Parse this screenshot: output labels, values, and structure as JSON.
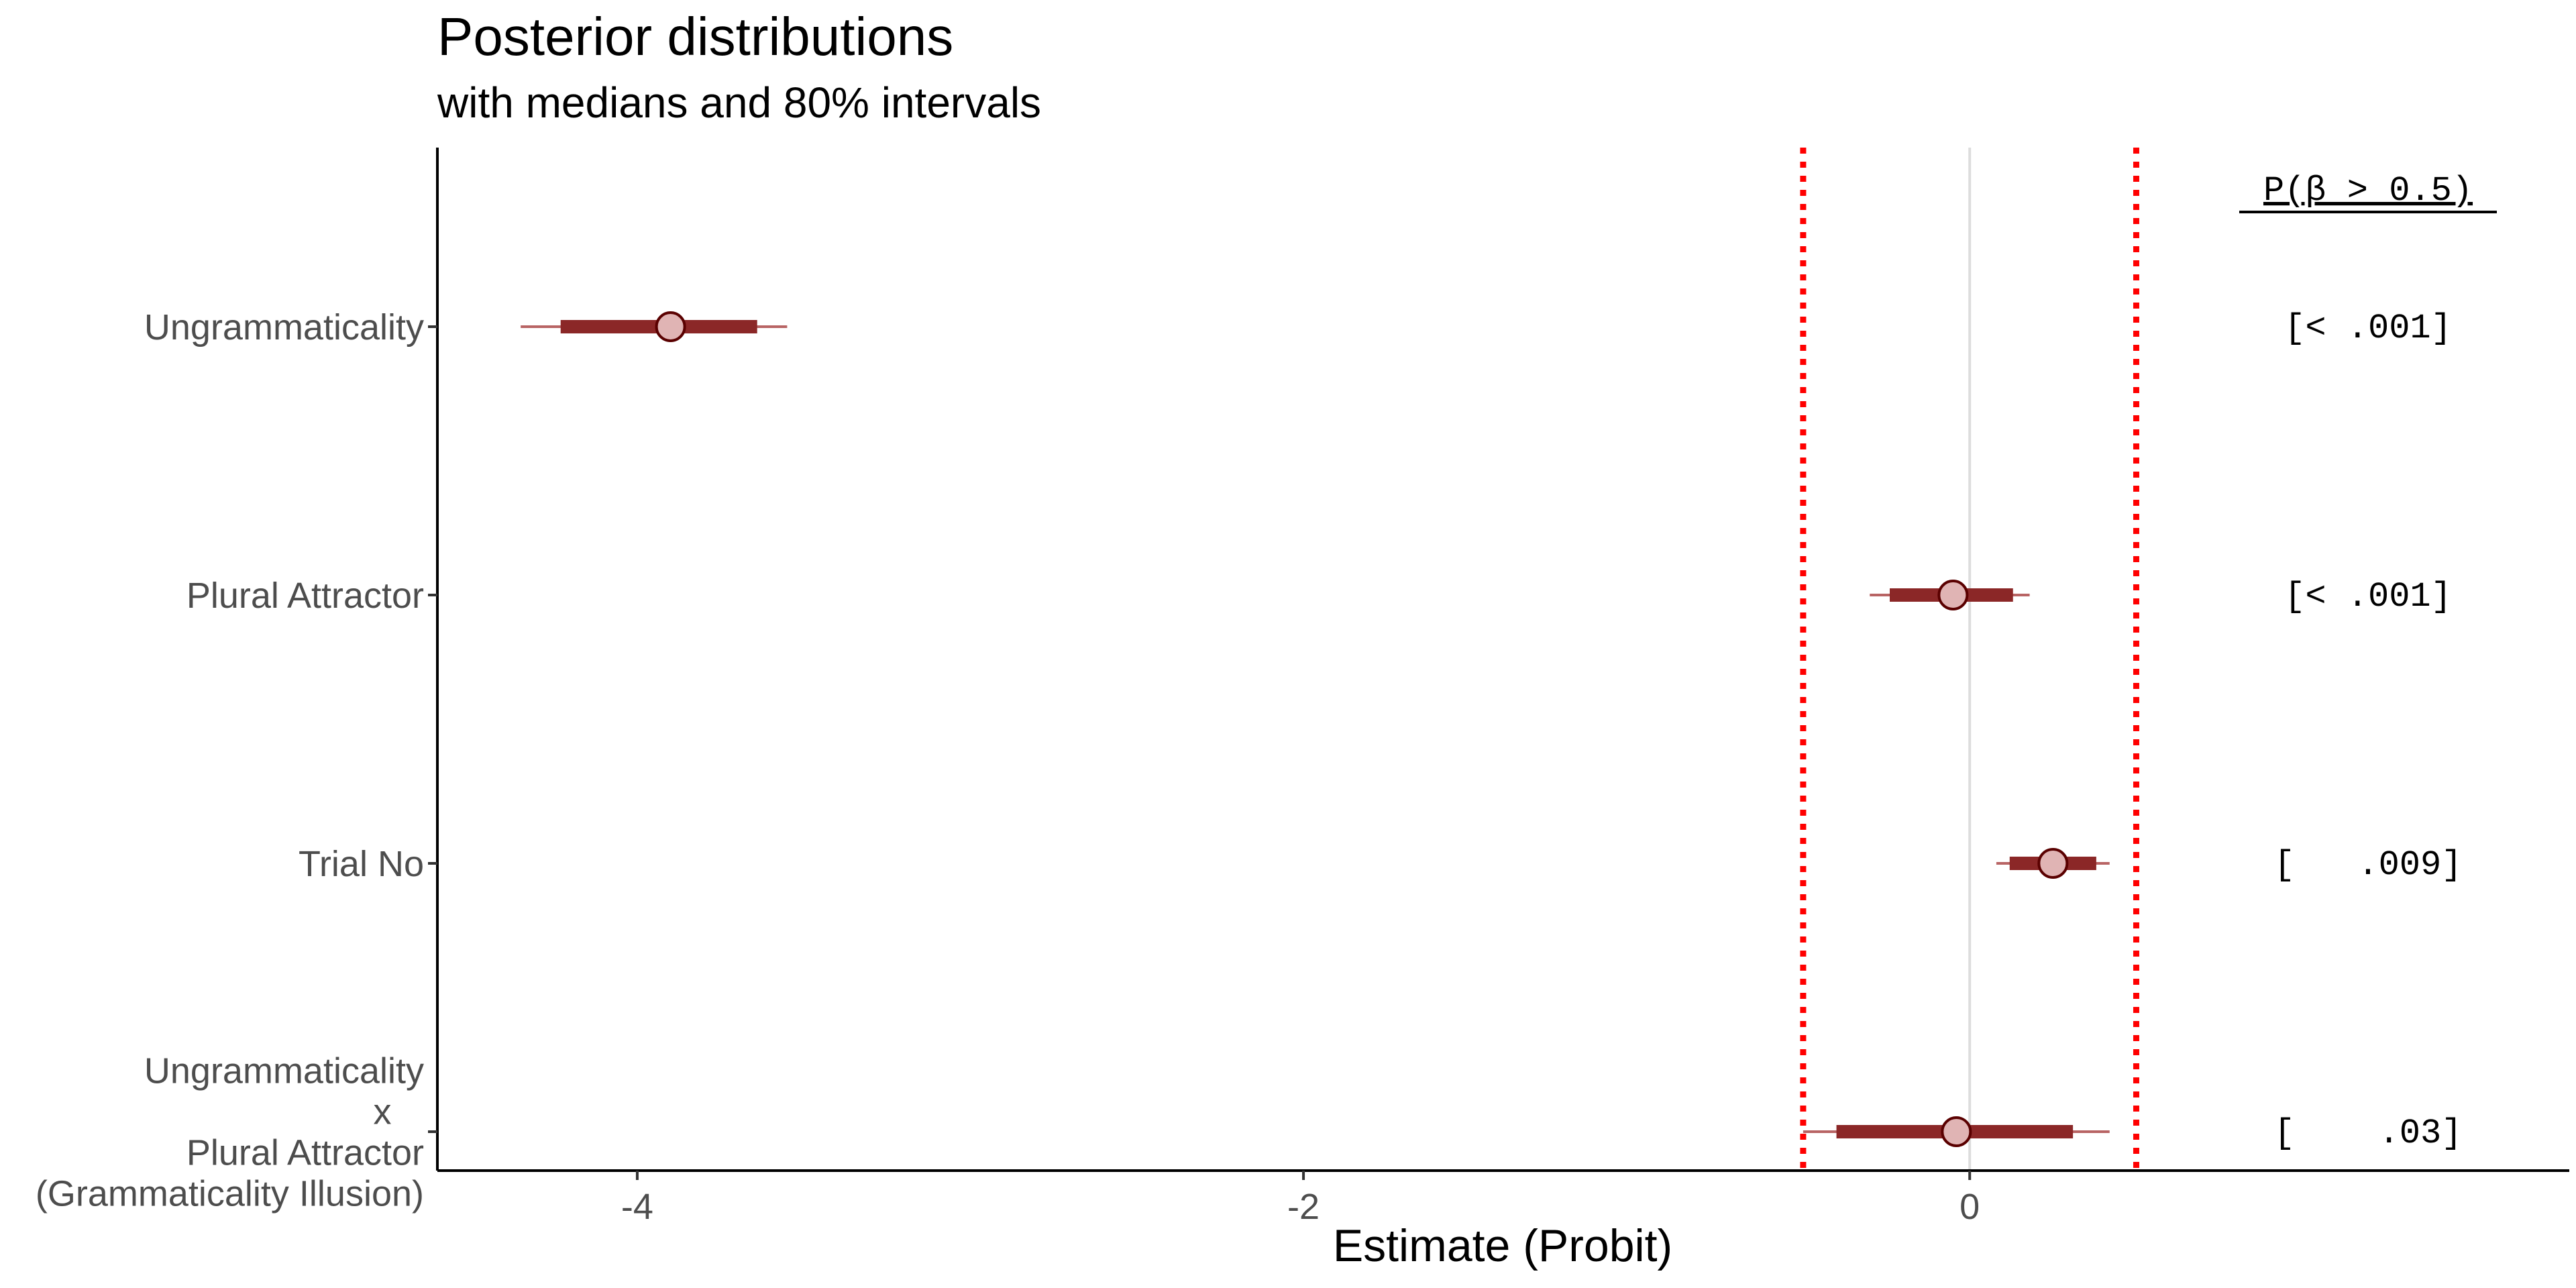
{
  "chart_data": {
    "type": "scatter",
    "title": "Posterior distributions",
    "subtitle": "with medians and 80% intervals",
    "xlabel": "Estimate (Probit)",
    "ylabel": "",
    "xlim": [
      -4.6,
      1.8
    ],
    "x_ticks": [
      -4,
      -2,
      0
    ],
    "x_tick_labels": [
      "-4",
      "-2",
      "0"
    ],
    "grid": false,
    "reference_lines": [
      {
        "x": 0,
        "style": "solid",
        "color": "#dddddd"
      },
      {
        "x": -0.5,
        "style": "dotted",
        "color": "#ff0000"
      },
      {
        "x": 0.5,
        "style": "dotted",
        "color": "#ff0000"
      }
    ],
    "prob_header": "P(β > 0.5)",
    "rows": [
      {
        "label": [
          "Ungrammaticality"
        ],
        "median": -3.9,
        "inner": [
          -4.23,
          -3.64
        ],
        "outer": [
          -4.35,
          -3.55
        ],
        "prob": "[< .001]"
      },
      {
        "label": [
          "Plural Attractor"
        ],
        "median": -0.05,
        "inner": [
          -0.24,
          0.13
        ],
        "outer": [
          -0.3,
          0.18
        ],
        "prob": "[< .001]"
      },
      {
        "label": [
          "Trial No"
        ],
        "median": 0.25,
        "inner": [
          0.12,
          0.38
        ],
        "outer": [
          0.08,
          0.42
        ],
        "prob": "[   .009]"
      },
      {
        "label": [
          "Ungrammaticality",
          "x",
          "Plural Attractor",
          "(Grammaticality Illusion)"
        ],
        "median": -0.04,
        "inner": [
          -0.4,
          0.31
        ],
        "outer": [
          -0.5,
          0.42
        ],
        "prob": "[    .03]"
      }
    ],
    "colors": {
      "inner": "#8b2727",
      "outer": "#b86464",
      "point_fill": "#e0b4b4",
      "point_stroke": "#5a0000",
      "ref_dotted": "#ff0000",
      "ref_zero": "#dddddd",
      "axis": "#000000"
    }
  }
}
